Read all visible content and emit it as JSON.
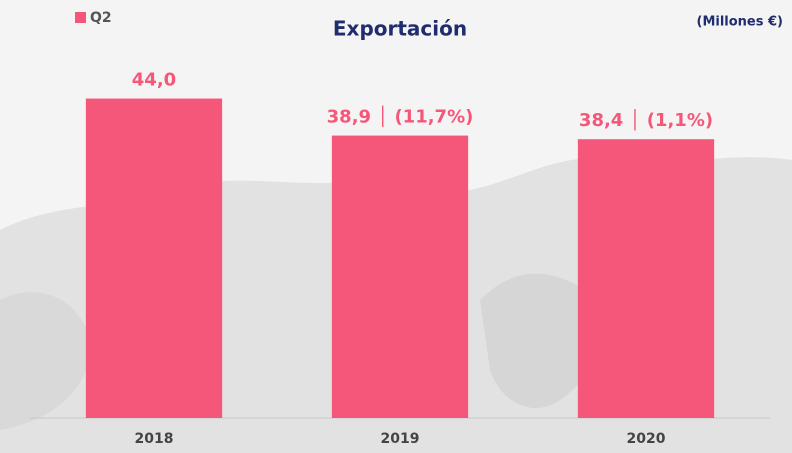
{
  "chart_data": {
    "type": "bar",
    "title": "Exportación",
    "annotation": "(Millones €)",
    "categories": [
      "2018",
      "2019",
      "2020"
    ],
    "series": [
      {
        "name": "Q2",
        "color": "#f5577a",
        "values": [
          44.0,
          38.9,
          38.4
        ],
        "value_labels": [
          "44,0",
          "38,9 │ (11,7%)",
          "38,4 │ (1,1%)"
        ]
      }
    ],
    "ylim": [
      0,
      50
    ],
    "legend": "top-left"
  }
}
